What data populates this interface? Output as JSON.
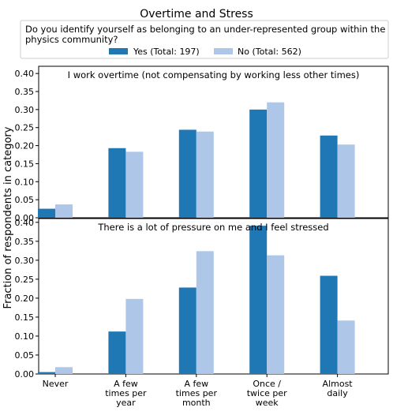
{
  "title": "Overtime and Stress",
  "legend": {
    "title_line1": "Do you identify yourself as belonging to an under-represented group within the",
    "title_line2": "physics community?",
    "placement": "top-center"
  },
  "ylabel": "Fraction of respondents in category",
  "colors": {
    "yes": "#1f77b4",
    "no": "#aec7e8"
  },
  "chart_data": [
    {
      "type": "bar",
      "title": "I work overtime (not compensating by working less other times)",
      "categories": [
        "Never",
        "A few times per year",
        "A few times per month",
        "Once / twice per week",
        "Almost daily"
      ],
      "category_labels": [
        [
          "Never"
        ],
        [
          "A few",
          "times per",
          "year"
        ],
        [
          "A few",
          "times per",
          "month"
        ],
        [
          "Once /",
          "twice per",
          "week"
        ],
        [
          "Almost",
          "daily"
        ]
      ],
      "series": [
        {
          "name": "Yes (Total: 197)",
          "values": [
            0.025,
            0.193,
            0.244,
            0.3,
            0.228
          ]
        },
        {
          "name": "No (Total: 562)",
          "values": [
            0.037,
            0.183,
            0.239,
            0.32,
            0.203
          ]
        }
      ],
      "ylim": [
        0,
        0.42
      ],
      "yticks": [
        "0.00",
        "0.05",
        "0.10",
        "0.15",
        "0.20",
        "0.25",
        "0.30",
        "0.35",
        "0.40"
      ],
      "grid": false
    },
    {
      "type": "bar",
      "title": "There is a lot of pressure on me and I feel stressed",
      "categories": [
        "Never",
        "A few times per year",
        "A few times per month",
        "Once / twice per week",
        "Almost daily"
      ],
      "category_labels": [
        [
          "Never"
        ],
        [
          "A few",
          "times per",
          "year"
        ],
        [
          "A few",
          "times per",
          "month"
        ],
        [
          "Once /",
          "twice per",
          "week"
        ],
        [
          "Almost",
          "daily"
        ]
      ],
      "series": [
        {
          "name": "Yes (Total: 197)",
          "values": [
            0.005,
            0.112,
            0.228,
            0.391,
            0.259
          ]
        },
        {
          "name": "No (Total: 562)",
          "values": [
            0.018,
            0.198,
            0.324,
            0.313,
            0.141
          ]
        }
      ],
      "ylim": [
        0,
        0.41
      ],
      "yticks": [
        "0.00",
        "0.05",
        "0.10",
        "0.15",
        "0.20",
        "0.25",
        "0.30",
        "0.35",
        "0.40"
      ],
      "grid": false
    }
  ]
}
